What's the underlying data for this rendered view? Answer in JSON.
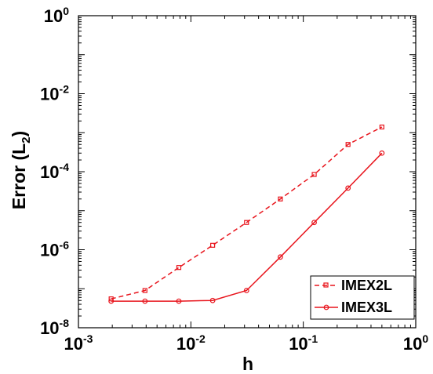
{
  "chart_data": {
    "type": "line",
    "xlabel": "h",
    "ylabel_main": "Error (L",
    "ylabel_sub": "2",
    "ylabel_close": ")",
    "xscale": "log",
    "yscale": "log",
    "xlim": [
      0.001,
      1
    ],
    "ylim": [
      1e-08,
      1
    ],
    "x_ticks": [
      {
        "base": "10",
        "exp": "-3"
      },
      {
        "base": "10",
        "exp": "-2"
      },
      {
        "base": "10",
        "exp": "-1"
      },
      {
        "base": "10",
        "exp": "0"
      }
    ],
    "y_ticks": [
      {
        "base": "10",
        "exp": "-8"
      },
      {
        "base": "10",
        "exp": "-6"
      },
      {
        "base": "10",
        "exp": "-4"
      },
      {
        "base": "10",
        "exp": "-2"
      },
      {
        "base": "10",
        "exp": "0"
      }
    ],
    "x": [
      0.001953125,
      0.00390625,
      0.0078125,
      0.015625,
      0.03125,
      0.0625,
      0.125,
      0.25,
      0.5
    ],
    "series": [
      {
        "name": "IMEX2L",
        "color": "#e8141c",
        "line_style": "dashed",
        "marker": "open-square",
        "values": [
          5.5e-08,
          9e-08,
          3.5e-07,
          1.3e-06,
          5e-06,
          2e-05,
          8.5e-05,
          0.0005,
          0.0014
        ]
      },
      {
        "name": "IMEX3L",
        "color": "#e8141c",
        "line_style": "solid",
        "marker": "open-circle",
        "values": [
          4.8e-08,
          4.8e-08,
          4.8e-08,
          5e-08,
          9e-08,
          6.5e-07,
          5e-06,
          3.8e-05,
          0.0003
        ]
      }
    ],
    "legend": "bottom-right",
    "grid": false
  }
}
